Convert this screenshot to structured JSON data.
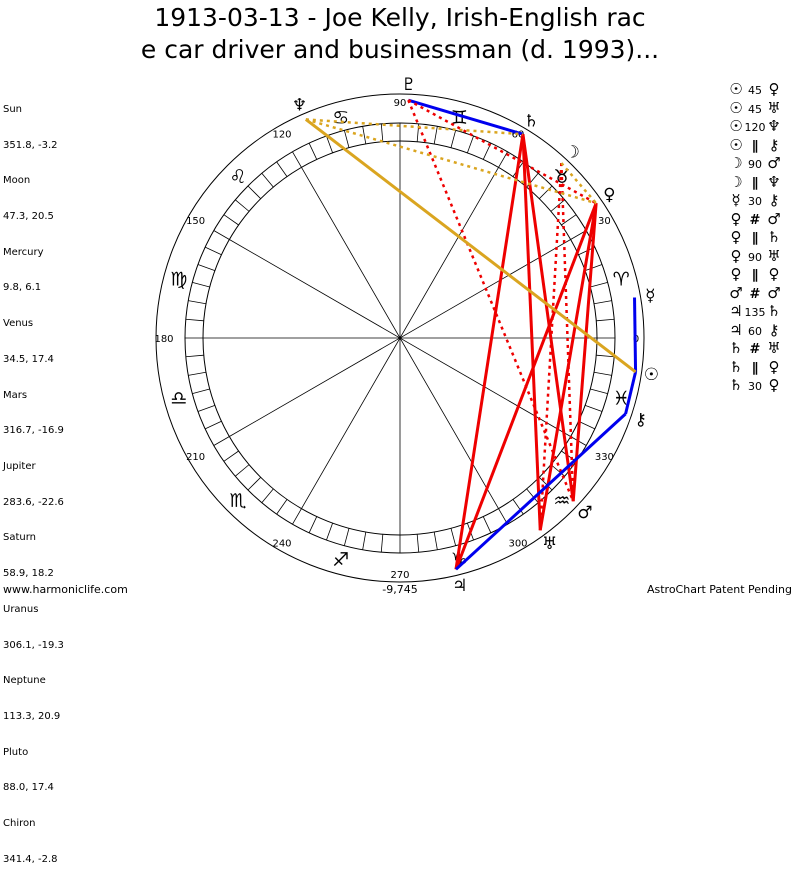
{
  "title_line1": "1913-03-13 - Joe Kelly, Irish-English rac",
  "title_line2": "e car driver and businessman (d. 1993)...",
  "positions": [
    {
      "name": "Sun",
      "value": "351.8, -3.2"
    },
    {
      "name": "Moon",
      "value": "47.3, 20.5"
    },
    {
      "name": "Mercury",
      "value": "9.8, 6.1"
    },
    {
      "name": "Venus",
      "value": "34.5, 17.4"
    },
    {
      "name": "Mars",
      "value": "316.7, -16.9"
    },
    {
      "name": "Jupiter",
      "value": "283.6, -22.6"
    },
    {
      "name": "Saturn",
      "value": "58.9, 18.2"
    },
    {
      "name": "Uranus",
      "value": "306.1, -19.3"
    },
    {
      "name": "Neptune",
      "value": "113.3, 20.9"
    },
    {
      "name": "Pluto",
      "value": "88.0, 17.4"
    },
    {
      "name": "Chiron",
      "value": "341.4, -2.8"
    }
  ],
  "degree_labels": [
    "90",
    "60",
    "30",
    "0",
    "330",
    "300",
    "270",
    "240",
    "210",
    "180",
    "150",
    "120"
  ],
  "bottom_value": "-9,745",
  "planets": [
    {
      "name": "sun",
      "glyph": "☉",
      "lon": 351.8
    },
    {
      "name": "moon",
      "glyph": "☽",
      "lon": 47.3
    },
    {
      "name": "mercury",
      "glyph": "☿",
      "lon": 9.8
    },
    {
      "name": "venus",
      "glyph": "♀",
      "lon": 34.5
    },
    {
      "name": "mars",
      "glyph": "♂",
      "lon": 316.7
    },
    {
      "name": "jupiter",
      "glyph": "♃",
      "lon": 283.6
    },
    {
      "name": "saturn",
      "glyph": "♄",
      "lon": 58.9
    },
    {
      "name": "uranus",
      "glyph": "♅",
      "lon": 306.1
    },
    {
      "name": "neptune",
      "glyph": "♆",
      "lon": 113.3
    },
    {
      "name": "pluto",
      "glyph": "♇",
      "lon": 88.0
    },
    {
      "name": "chiron",
      "glyph": "⚷",
      "lon": 341.4
    }
  ],
  "zodiac": [
    {
      "name": "aries",
      "glyph": "♈"
    },
    {
      "name": "taurus",
      "glyph": "♉"
    },
    {
      "name": "gemini",
      "glyph": "♊"
    },
    {
      "name": "cancer",
      "glyph": "♋"
    },
    {
      "name": "leo",
      "glyph": "♌"
    },
    {
      "name": "virgo",
      "glyph": "♍"
    },
    {
      "name": "libra",
      "glyph": "♎"
    },
    {
      "name": "scorpio",
      "glyph": "♏"
    },
    {
      "name": "sagittarius",
      "glyph": "♐"
    },
    {
      "name": "capricorn",
      "glyph": "♑"
    },
    {
      "name": "aquarius",
      "glyph": "♒"
    },
    {
      "name": "pisces",
      "glyph": "♓"
    }
  ],
  "aspect_lines": [
    {
      "a": "pluto",
      "b": "saturn",
      "color": "#0000ee",
      "style": "solid"
    },
    {
      "a": "pluto",
      "b": "venus",
      "color": "#ee0000",
      "style": "dotted"
    },
    {
      "a": "pluto",
      "b": "mars",
      "color": "#ee0000",
      "style": "dotted"
    },
    {
      "a": "saturn",
      "b": "uranus",
      "color": "#ee0000",
      "style": "solid"
    },
    {
      "a": "saturn",
      "b": "mars",
      "color": "#ee0000",
      "style": "solid"
    },
    {
      "a": "saturn",
      "b": "jupiter",
      "color": "#ee0000",
      "style": "solid"
    },
    {
      "a": "moon",
      "b": "uranus",
      "color": "#ee0000",
      "style": "dotted"
    },
    {
      "a": "moon",
      "b": "mars",
      "color": "#ee0000",
      "style": "dotted"
    },
    {
      "a": "venus",
      "b": "jupiter",
      "color": "#ee0000",
      "style": "solid"
    },
    {
      "a": "venus",
      "b": "uranus",
      "color": "#ee0000",
      "style": "solid"
    },
    {
      "a": "venus",
      "b": "mars",
      "color": "#ee0000",
      "style": "solid"
    },
    {
      "a": "mercury",
      "b": "sun",
      "color": "#0000ee",
      "style": "solid"
    },
    {
      "a": "sun",
      "b": "chiron",
      "color": "#0000ee",
      "style": "solid"
    },
    {
      "a": "chiron",
      "b": "jupiter",
      "color": "#0000ee",
      "style": "solid"
    },
    {
      "a": "neptune",
      "b": "sun",
      "color": "#daa520",
      "style": "solid"
    },
    {
      "a": "neptune",
      "b": "saturn",
      "color": "#daa520",
      "style": "dotted"
    },
    {
      "a": "neptune",
      "b": "venus",
      "color": "#daa520",
      "style": "dotted"
    },
    {
      "a": "moon",
      "b": "venus",
      "color": "#daa520",
      "style": "dotted"
    }
  ],
  "aspects": [
    {
      "p1": "☉",
      "sym": "45",
      "p2": "♀"
    },
    {
      "p1": "☉",
      "sym": "45",
      "p2": "♅"
    },
    {
      "p1": "☉",
      "sym": "120",
      "p2": "♆"
    },
    {
      "p1": "☉",
      "sym": "∥",
      "p2": "⚷"
    },
    {
      "p1": "☽",
      "sym": "90",
      "p2": "♂"
    },
    {
      "p1": "☽",
      "sym": "∥",
      "p2": "♆"
    },
    {
      "p1": "☿",
      "sym": "30",
      "p2": "⚷"
    },
    {
      "p1": "♀",
      "sym": "#",
      "p2": "♂"
    },
    {
      "p1": "♀",
      "sym": "∥",
      "p2": "♄"
    },
    {
      "p1": "♀",
      "sym": "90",
      "p2": "♅"
    },
    {
      "p1": "♀",
      "sym": "∥",
      "p2": "♀"
    },
    {
      "p1": "♂",
      "sym": "#",
      "p2": "♂"
    },
    {
      "p1": "♃",
      "sym": "135",
      "p2": "♄"
    },
    {
      "p1": "♃",
      "sym": "60",
      "p2": "⚷"
    },
    {
      "p1": "♄",
      "sym": "#",
      "p2": "♅"
    },
    {
      "p1": "♄",
      "sym": "∥",
      "p2": "♀"
    },
    {
      "p1": "♄",
      "sym": "30",
      "p2": "♀"
    }
  ],
  "footer_left": "www.harmoniclife.com",
  "footer_right": "AstroChart Patent Pending"
}
